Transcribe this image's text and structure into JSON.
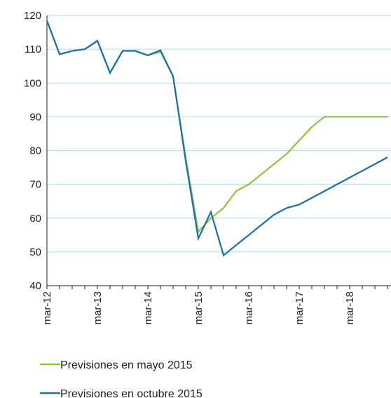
{
  "chart_data": {
    "type": "line",
    "categories": [
      "mar-12",
      null,
      null,
      null,
      "mar-13",
      null,
      null,
      null,
      "mar-14",
      null,
      null,
      null,
      "mar-15",
      null,
      null,
      null,
      "mar-16",
      null,
      null,
      null,
      "mar-17",
      null,
      null,
      null,
      "mar-18",
      null,
      null,
      null
    ],
    "series": [
      {
        "name": "Previsiones en mayo 2015",
        "color": "#8dc63f",
        "values": [
          118.5,
          108.5,
          109.5,
          110,
          112.5,
          103,
          109.5,
          109.5,
          108.2,
          109.2,
          102,
          78,
          56,
          60,
          63,
          68,
          70,
          73,
          76,
          79,
          83,
          87,
          90,
          90,
          90,
          90,
          90,
          90
        ]
      },
      {
        "name": "Previsiones en octubre 2015",
        "color": "#1a6fae",
        "values": [
          118.5,
          108.5,
          109.5,
          110,
          112.5,
          103,
          109.5,
          109.5,
          108.2,
          109.7,
          102,
          77,
          54,
          61.8,
          49,
          52,
          55,
          58,
          61,
          63,
          64,
          66,
          68,
          70,
          72,
          74,
          76,
          78
        ]
      }
    ],
    "ylim": [
      40,
      120
    ],
    "yticks": [
      40,
      50,
      60,
      70,
      80,
      90,
      100,
      110,
      120
    ],
    "grid": true
  }
}
